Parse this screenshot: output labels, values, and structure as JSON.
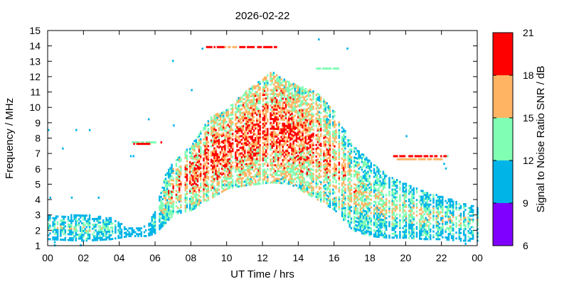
{
  "chart_data": {
    "type": "heatmap",
    "title": "2026-02-22",
    "xlabel": "UT Time / hrs",
    "ylabel": "Frequency / MHz",
    "xlim": [
      0,
      24
    ],
    "ylim": [
      1,
      15
    ],
    "x_ticks": [
      "00",
      "02",
      "04",
      "06",
      "08",
      "10",
      "12",
      "14",
      "16",
      "18",
      "20",
      "22",
      "00"
    ],
    "y_ticks": [
      "1",
      "2",
      "3",
      "4",
      "5",
      "6",
      "7",
      "8",
      "9",
      "10",
      "11",
      "12",
      "13",
      "14",
      "15"
    ],
    "colorbar": {
      "label": "Signal to Noise Ratio SNR / dB",
      "ticks": [
        "6",
        "9",
        "12",
        "15",
        "18",
        "21"
      ],
      "bands": [
        {
          "from": 6,
          "to": 9,
          "color": "#8000ff"
        },
        {
          "from": 9,
          "to": 12,
          "color": "#00b4e8"
        },
        {
          "from": 12,
          "to": 15,
          "color": "#80ffb4"
        },
        {
          "from": 15,
          "to": 18,
          "color": "#ffb464"
        },
        {
          "from": 18,
          "to": 21,
          "color": "#ff0000"
        }
      ]
    },
    "profile": [
      {
        "t": 0.0,
        "lo": 1.4,
        "hi": 2.9,
        "snr": 12
      },
      {
        "t": 2.0,
        "lo": 1.3,
        "hi": 3.0,
        "snr": 13
      },
      {
        "t": 3.5,
        "lo": 1.4,
        "hi": 2.8,
        "snr": 12
      },
      {
        "t": 4.5,
        "lo": 1.6,
        "hi": 2.1,
        "snr": 10
      },
      {
        "t": 5.5,
        "lo": 1.6,
        "hi": 2.3,
        "snr": 10
      },
      {
        "t": 6.0,
        "lo": 1.8,
        "hi": 3.3,
        "snr": 12
      },
      {
        "t": 6.5,
        "lo": 2.4,
        "hi": 5.5,
        "snr": 14
      },
      {
        "t": 7.0,
        "lo": 3.0,
        "hi": 6.5,
        "snr": 16
      },
      {
        "t": 8.0,
        "lo": 3.3,
        "hi": 7.5,
        "snr": 17
      },
      {
        "t": 9.0,
        "lo": 4.0,
        "hi": 9.3,
        "snr": 18
      },
      {
        "t": 10.0,
        "lo": 4.7,
        "hi": 9.9,
        "snr": 18
      },
      {
        "t": 11.0,
        "lo": 4.9,
        "hi": 11.0,
        "snr": 18
      },
      {
        "t": 12.5,
        "lo": 5.1,
        "hi": 12.3,
        "snr": 18
      },
      {
        "t": 13.5,
        "lo": 5.0,
        "hi": 11.6,
        "snr": 18
      },
      {
        "t": 15.0,
        "lo": 4.0,
        "hi": 11.0,
        "snr": 17
      },
      {
        "t": 16.0,
        "lo": 3.3,
        "hi": 9.7,
        "snr": 16
      },
      {
        "t": 17.0,
        "lo": 2.0,
        "hi": 7.5,
        "snr": 15
      },
      {
        "t": 18.0,
        "lo": 1.6,
        "hi": 6.5,
        "snr": 14
      },
      {
        "t": 19.0,
        "lo": 1.5,
        "hi": 5.5,
        "snr": 14
      },
      {
        "t": 20.0,
        "lo": 1.5,
        "hi": 5.0,
        "snr": 14
      },
      {
        "t": 21.0,
        "lo": 1.4,
        "hi": 4.5,
        "snr": 14
      },
      {
        "t": 22.0,
        "lo": 1.4,
        "hi": 4.2,
        "snr": 13
      },
      {
        "t": 23.0,
        "lo": 1.3,
        "hi": 3.8,
        "snr": 13
      },
      {
        "t": 24.0,
        "lo": 1.3,
        "hi": 3.5,
        "snr": 13
      }
    ],
    "traces": [
      {
        "t0": 8.85,
        "t1": 9.8,
        "f": 13.9,
        "snr": 18
      },
      {
        "t0": 9.8,
        "t1": 10.5,
        "f": 13.9,
        "snr": 16
      },
      {
        "t0": 10.7,
        "t1": 11.5,
        "f": 13.9,
        "snr": 19
      },
      {
        "t0": 11.7,
        "t1": 12.8,
        "f": 13.9,
        "snr": 18
      },
      {
        "t0": 4.7,
        "t1": 6.0,
        "f": 7.7,
        "snr": 13
      },
      {
        "t0": 4.7,
        "t1": 5.9,
        "f": 7.6,
        "snr": 18
      },
      {
        "t0": 19.3,
        "t1": 22.3,
        "f": 6.8,
        "snr": 19
      },
      {
        "t0": 19.5,
        "t1": 22.2,
        "f": 6.6,
        "snr": 16
      },
      {
        "t0": 15.0,
        "t1": 16.2,
        "f": 12.5,
        "snr": 13
      }
    ],
    "points": [
      {
        "t": 0.0,
        "f": 8.5,
        "snr": 10
      },
      {
        "t": 0.1,
        "f": 4.1,
        "snr": 10
      },
      {
        "t": 0.35,
        "f": 1.2,
        "snr": 10
      },
      {
        "t": 0.35,
        "f": 1.0,
        "snr": 10
      },
      {
        "t": 0.8,
        "f": 7.3,
        "snr": 10
      },
      {
        "t": 1.3,
        "f": 4.1,
        "snr": 10
      },
      {
        "t": 1.55,
        "f": 8.5,
        "snr": 10
      },
      {
        "t": 2.3,
        "f": 8.5,
        "snr": 10
      },
      {
        "t": 2.8,
        "f": 4.1,
        "snr": 10
      },
      {
        "t": 3.4,
        "f": 2.7,
        "snr": 10
      },
      {
        "t": 4.6,
        "f": 6.8,
        "snr": 10
      },
      {
        "t": 4.75,
        "f": 6.8,
        "snr": 10
      },
      {
        "t": 5.6,
        "f": 9.2,
        "snr": 10
      },
      {
        "t": 6.3,
        "f": 7.7,
        "snr": 19
      },
      {
        "t": 6.95,
        "f": 13.0,
        "snr": 10
      },
      {
        "t": 7.0,
        "f": 8.8,
        "snr": 10
      },
      {
        "t": 8.0,
        "f": 11.1,
        "snr": 10
      },
      {
        "t": 8.6,
        "f": 13.8,
        "snr": 10
      },
      {
        "t": 15.1,
        "f": 14.4,
        "snr": 10
      },
      {
        "t": 16.7,
        "f": 13.8,
        "snr": 10
      },
      {
        "t": 20.0,
        "f": 8.1,
        "snr": 10
      },
      {
        "t": 22.1,
        "f": 6.3,
        "snr": 10
      },
      {
        "t": 22.3,
        "f": 6.8,
        "snr": 13
      },
      {
        "t": 22.2,
        "f": 6.0,
        "snr": 10
      },
      {
        "t": 23.3,
        "f": 1.1,
        "snr": 10
      },
      {
        "t": 1.8,
        "f": 1.0,
        "snr": 10
      }
    ]
  }
}
